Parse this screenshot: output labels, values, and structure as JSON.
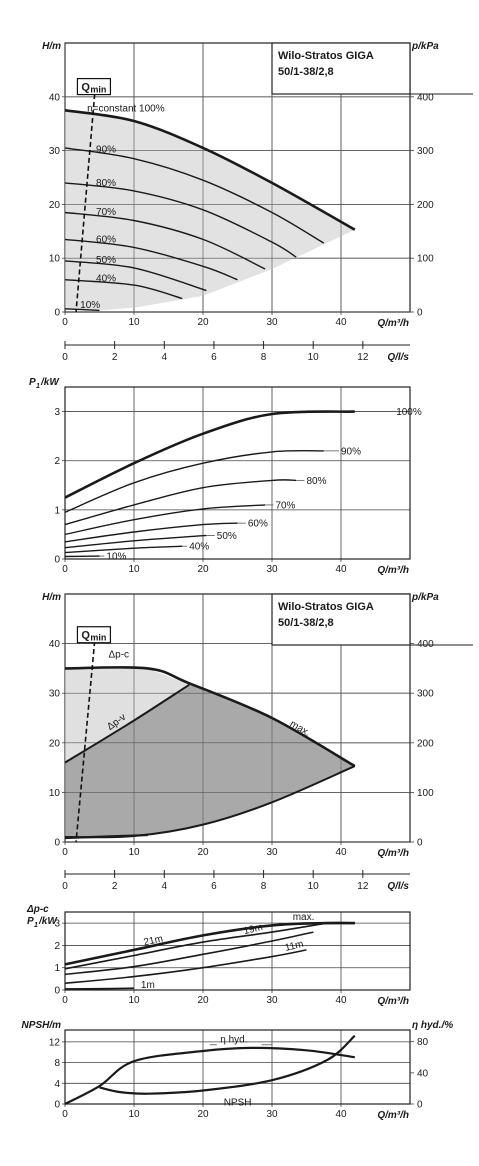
{
  "colors": {
    "lightFill": "#e0e0e0",
    "darkFill": "#a9a9a9",
    "line": "#1a1a1a",
    "grid": "#444444"
  },
  "chart_data": [
    {
      "type": "line",
      "id": "hq1",
      "ylabel": "H/m",
      "ylabel_right": "p/kPa",
      "xlabel": "Q/m³/h",
      "title_lines": [
        "Wilo-Stratos GIGA",
        "50/1-38/2,8"
      ],
      "qmin_label": "Q",
      "qmin_sub": "min",
      "xlim": [
        0,
        50
      ],
      "ylim": [
        0,
        50
      ],
      "y2lim": [
        0,
        500
      ],
      "xticks": [
        0,
        10,
        20,
        30,
        40
      ],
      "yticks": [
        0,
        10,
        20,
        30,
        40
      ],
      "y2ticks": [
        0,
        100,
        200,
        300,
        400
      ],
      "secondary_x": {
        "label": "Q/l/s",
        "lim": [
          0,
          13.9
        ],
        "ticks": [
          0,
          2,
          4,
          6,
          8,
          10,
          12
        ]
      },
      "series": [
        {
          "name": "n=constant 100%",
          "x": [
            0,
            10,
            20,
            30,
            42
          ],
          "y": [
            37.5,
            35.5,
            30.5,
            24,
            15.3
          ]
        },
        {
          "name": "90%",
          "x": [
            0,
            10,
            20,
            30,
            37.5
          ],
          "y": [
            30.5,
            28.5,
            24.5,
            18.5,
            12.8
          ]
        },
        {
          "name": "80%",
          "x": [
            0,
            10,
            20,
            30,
            33.5
          ],
          "y": [
            24,
            22.5,
            19,
            13,
            10.2
          ]
        },
        {
          "name": "70%",
          "x": [
            0,
            10,
            20,
            29
          ],
          "y": [
            18.5,
            17,
            13.5,
            8.0
          ]
        },
        {
          "name": "60%",
          "x": [
            0,
            10,
            20,
            25
          ],
          "y": [
            13.5,
            12,
            8.5,
            6.0
          ]
        },
        {
          "name": "50%",
          "x": [
            0,
            10,
            20.5
          ],
          "y": [
            9.5,
            8.2,
            4.0
          ]
        },
        {
          "name": "40%",
          "x": [
            0,
            10,
            17
          ],
          "y": [
            6.0,
            5.0,
            2.5
          ]
        },
        {
          "name": "10%",
          "x": [
            0,
            5
          ],
          "y": [
            0.6,
            0.3
          ]
        }
      ],
      "qmin": {
        "x": [
          4.3,
          1.6
        ],
        "y": [
          40.5,
          0
        ]
      }
    },
    {
      "type": "line",
      "id": "p1",
      "ylabel": "P",
      "ylabel_sub": "1",
      "ylabel_unit": "/kW",
      "xlabel": "Q/m³/h",
      "xlim": [
        0,
        50
      ],
      "ylim": [
        0,
        3.5
      ],
      "xticks": [
        0,
        10,
        20,
        30,
        40
      ],
      "yticks": [
        0,
        1,
        2,
        3
      ],
      "series": [
        {
          "name": "100%",
          "x": [
            0,
            10,
            20,
            30,
            42
          ],
          "y": [
            1.25,
            1.95,
            2.55,
            2.95,
            3.0
          ]
        },
        {
          "name": "90%",
          "x": [
            0,
            10,
            20,
            30,
            37.5
          ],
          "y": [
            0.95,
            1.55,
            1.95,
            2.18,
            2.2
          ]
        },
        {
          "name": "80%",
          "x": [
            0,
            10,
            20,
            30,
            33.5
          ],
          "y": [
            0.7,
            1.1,
            1.45,
            1.6,
            1.6
          ]
        },
        {
          "name": "70%",
          "x": [
            0,
            10,
            20,
            29
          ],
          "y": [
            0.5,
            0.8,
            1.02,
            1.1
          ]
        },
        {
          "name": "60%",
          "x": [
            0,
            10,
            20,
            25
          ],
          "y": [
            0.35,
            0.55,
            0.7,
            0.73
          ]
        },
        {
          "name": "50%",
          "x": [
            0,
            10,
            20.5
          ],
          "y": [
            0.23,
            0.37,
            0.48
          ]
        },
        {
          "name": "40%",
          "x": [
            0,
            10,
            17
          ],
          "y": [
            0.13,
            0.22,
            0.26
          ]
        },
        {
          "name": "10%",
          "x": [
            0,
            5
          ],
          "y": [
            0.05,
            0.06
          ]
        }
      ]
    },
    {
      "type": "area",
      "id": "hq2",
      "ylabel": "H/m",
      "ylabel_right": "p/kPa",
      "xlabel": "Q/m³/h",
      "title_lines": [
        "Wilo-Stratos GIGA",
        "50/1-38/2,8"
      ],
      "qmin_label": "Q",
      "qmin_sub": "min",
      "xlim": [
        0,
        50
      ],
      "ylim": [
        0,
        50
      ],
      "y2lim": [
        0,
        500
      ],
      "xticks": [
        0,
        10,
        20,
        30,
        40
      ],
      "yticks": [
        0,
        10,
        20,
        30,
        40
      ],
      "y2ticks": [
        0,
        100,
        200,
        300,
        400
      ],
      "secondary_x": {
        "label": "Q/l/s",
        "lim": [
          0,
          13.9
        ],
        "ticks": [
          0,
          2,
          4,
          6,
          8,
          10,
          12
        ]
      },
      "annotations": [
        "Δp-c",
        "Δp-v",
        "max."
      ],
      "series": [
        {
          "name": "max.",
          "x": [
            0,
            12,
            18,
            30,
            42
          ],
          "y": [
            35,
            35,
            32,
            25,
            15.3
          ]
        },
        {
          "name": "Δp-v",
          "x": [
            0,
            10,
            18
          ],
          "y": [
            16,
            24.5,
            31.7
          ]
        },
        {
          "name": "min",
          "x": [
            0,
            10,
            20,
            30,
            42
          ],
          "y": [
            1.0,
            1.2,
            3.5,
            8.0,
            15.3
          ]
        }
      ],
      "qmin": {
        "x": [
          4.3,
          1.6
        ],
        "y": [
          40.5,
          0
        ]
      }
    },
    {
      "type": "line",
      "id": "p2",
      "ylabel_top": "Δp-c",
      "ylabel": "P",
      "ylabel_sub": "1",
      "ylabel_unit": "/kW",
      "xlabel": "Q/m³/h",
      "xlim": [
        0,
        50
      ],
      "ylim": [
        0,
        3.5
      ],
      "xticks": [
        0,
        10,
        20,
        30,
        40
      ],
      "yticks": [
        0,
        1,
        2,
        3
      ],
      "annotations": [
        "max.",
        "21m",
        "19m",
        "11m",
        "1m"
      ],
      "series": [
        {
          "name": "max.",
          "x": [
            0,
            10,
            20,
            30,
            38,
            42
          ],
          "y": [
            1.15,
            1.8,
            2.45,
            2.9,
            3.0,
            3.0
          ]
        },
        {
          "name": "21m",
          "x": [
            0,
            10,
            20,
            30,
            38
          ],
          "y": [
            0.95,
            1.55,
            2.15,
            2.6,
            3.0
          ]
        },
        {
          "name": "19m",
          "x": [
            0,
            10,
            20,
            30,
            36
          ],
          "y": [
            0.7,
            1.05,
            1.6,
            2.2,
            2.6
          ]
        },
        {
          "name": "11m",
          "x": [
            0,
            10,
            20,
            30,
            35
          ],
          "y": [
            0.3,
            0.6,
            1.0,
            1.5,
            1.8
          ]
        },
        {
          "name": "1m",
          "x": [
            0,
            5,
            10
          ],
          "y": [
            0.05,
            0.06,
            0.08
          ]
        }
      ]
    },
    {
      "type": "line",
      "id": "npsh",
      "ylabel": "NPSH/m",
      "ylabel_right": "η hyd./%",
      "xlabel": "Q/m³/h",
      "xlim": [
        0,
        50
      ],
      "ylim": [
        0,
        14.3
      ],
      "y2lim": [
        0,
        95
      ],
      "xticks": [
        0,
        10,
        20,
        30,
        40
      ],
      "yticks": [
        0,
        4,
        8,
        12
      ],
      "y2ticks": [
        0,
        40,
        80
      ],
      "series": [
        {
          "name": "η hyd.",
          "axis": "right",
          "x": [
            0,
            5,
            10,
            20,
            27,
            35,
            42
          ],
          "y": [
            0,
            23,
            55,
            68,
            72,
            69,
            60
          ]
        },
        {
          "name": "NPSH",
          "axis": "left",
          "x": [
            5,
            8,
            12,
            20,
            30,
            38,
            42
          ],
          "y": [
            3.2,
            2.3,
            2.0,
            2.6,
            4.6,
            8.5,
            13.2
          ]
        }
      ]
    }
  ]
}
